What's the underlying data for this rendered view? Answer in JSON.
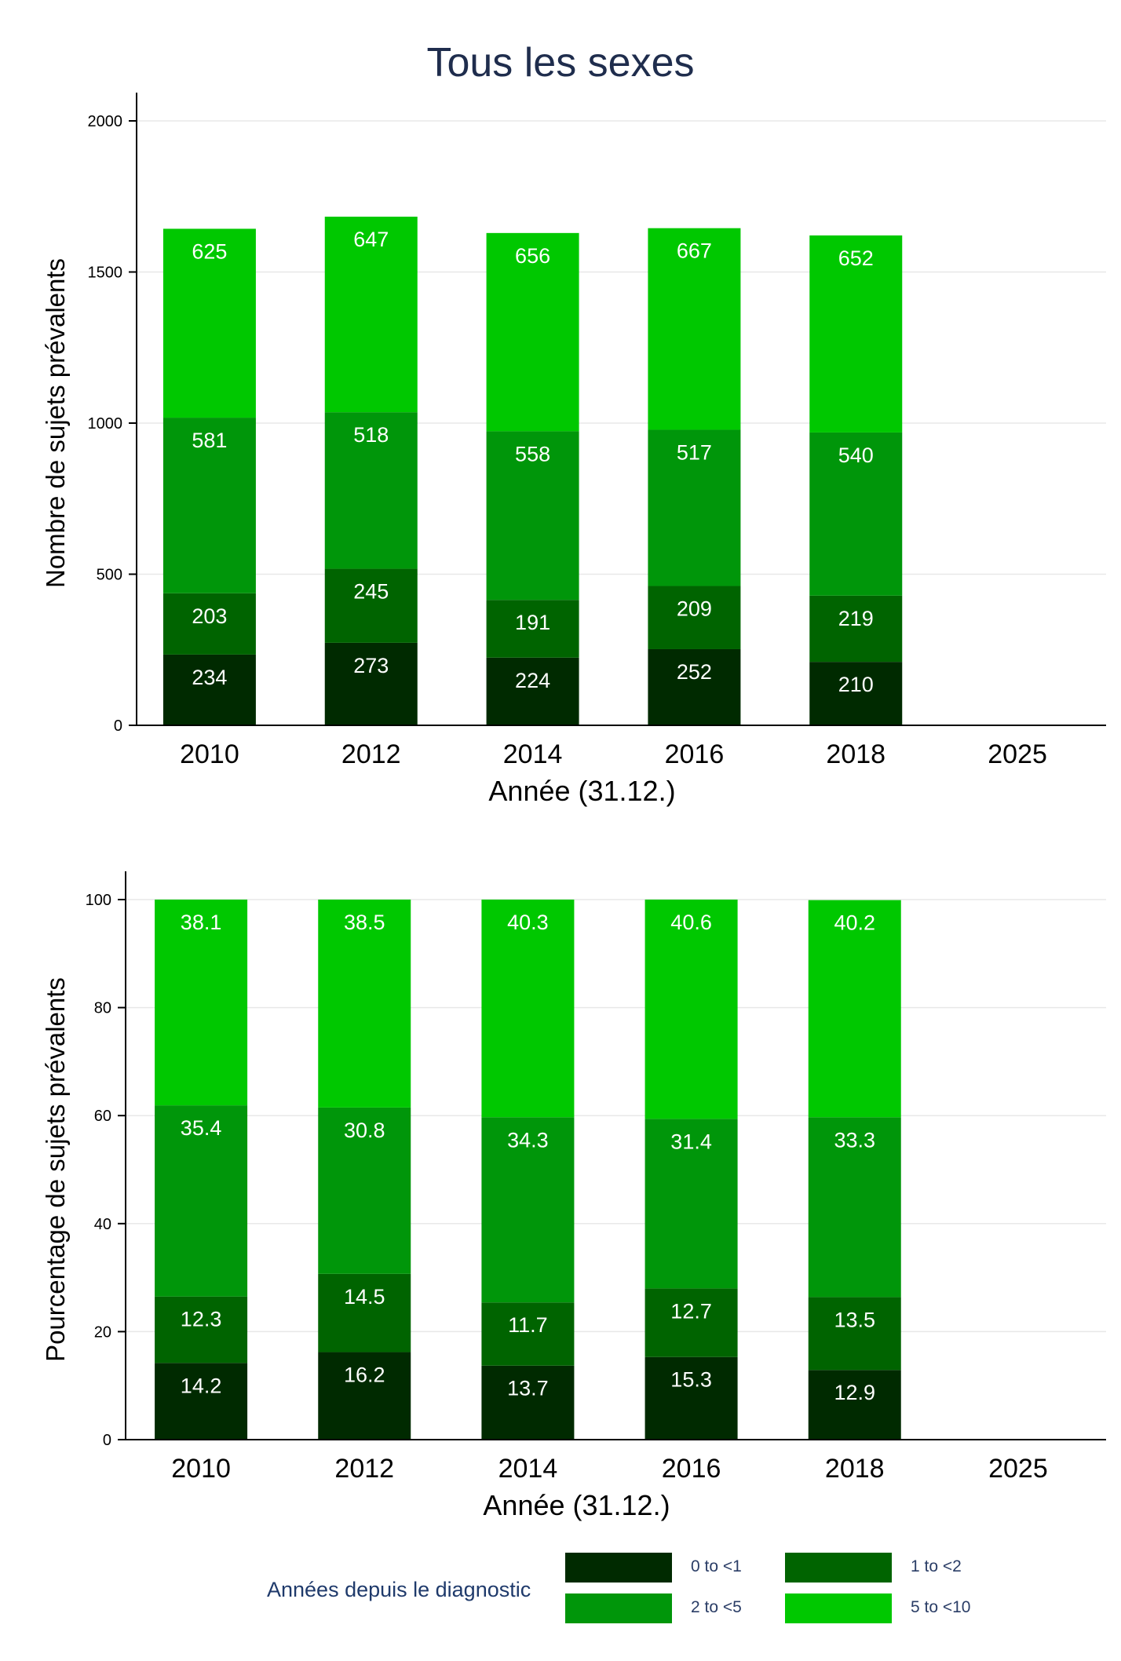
{
  "title": "Tous les sexes",
  "colors": {
    "0 to <1": "#002a00",
    "1 to <2": "#006400",
    "2 to <5": "#00960a",
    "5 to <10": "#00c800",
    "axis": "#000000",
    "grid": "#e8e8e8",
    "title": "#1f2d4d"
  },
  "legend": {
    "title": "Années depuis le diagnostic",
    "items": [
      "0 to <1",
      "1 to <2",
      "2 to <5",
      "5 to <10"
    ]
  },
  "chart_data": [
    {
      "type": "bar",
      "stacked": true,
      "title": "Tous les sexes",
      "xlabel": "Année (31.12.)",
      "ylabel": "Nombre de sujets prévalents",
      "categories": [
        "2010",
        "2012",
        "2014",
        "2016",
        "2018",
        "2025"
      ],
      "ylim": [
        0,
        2000
      ],
      "yticks": [
        0,
        500,
        1000,
        1500,
        2000
      ],
      "grid": true,
      "series": [
        {
          "name": "0 to <1",
          "values": [
            234,
            273,
            224,
            252,
            210,
            null
          ]
        },
        {
          "name": "1 to <2",
          "values": [
            203,
            245,
            191,
            209,
            219,
            null
          ]
        },
        {
          "name": "2 to <5",
          "values": [
            581,
            518,
            558,
            517,
            540,
            null
          ]
        },
        {
          "name": "5 to <10",
          "values": [
            625,
            647,
            656,
            667,
            652,
            null
          ]
        }
      ]
    },
    {
      "type": "bar",
      "stacked": true,
      "xlabel": "Année (31.12.)",
      "ylabel": "Pourcentage de sujets prévalents",
      "categories": [
        "2010",
        "2012",
        "2014",
        "2016",
        "2018",
        "2025"
      ],
      "ylim": [
        0,
        100
      ],
      "yticks": [
        0,
        20,
        40,
        60,
        80,
        100
      ],
      "grid": true,
      "series": [
        {
          "name": "0 to <1",
          "values": [
            14.2,
            16.2,
            13.7,
            15.3,
            12.9,
            null
          ]
        },
        {
          "name": "1 to <2",
          "values": [
            12.3,
            14.5,
            11.7,
            12.7,
            13.5,
            null
          ]
        },
        {
          "name": "2 to <5",
          "values": [
            35.4,
            30.8,
            34.3,
            31.4,
            33.3,
            null
          ]
        },
        {
          "name": "5 to <10",
          "values": [
            38.1,
            38.5,
            40.3,
            40.6,
            40.2,
            null
          ]
        }
      ]
    }
  ]
}
